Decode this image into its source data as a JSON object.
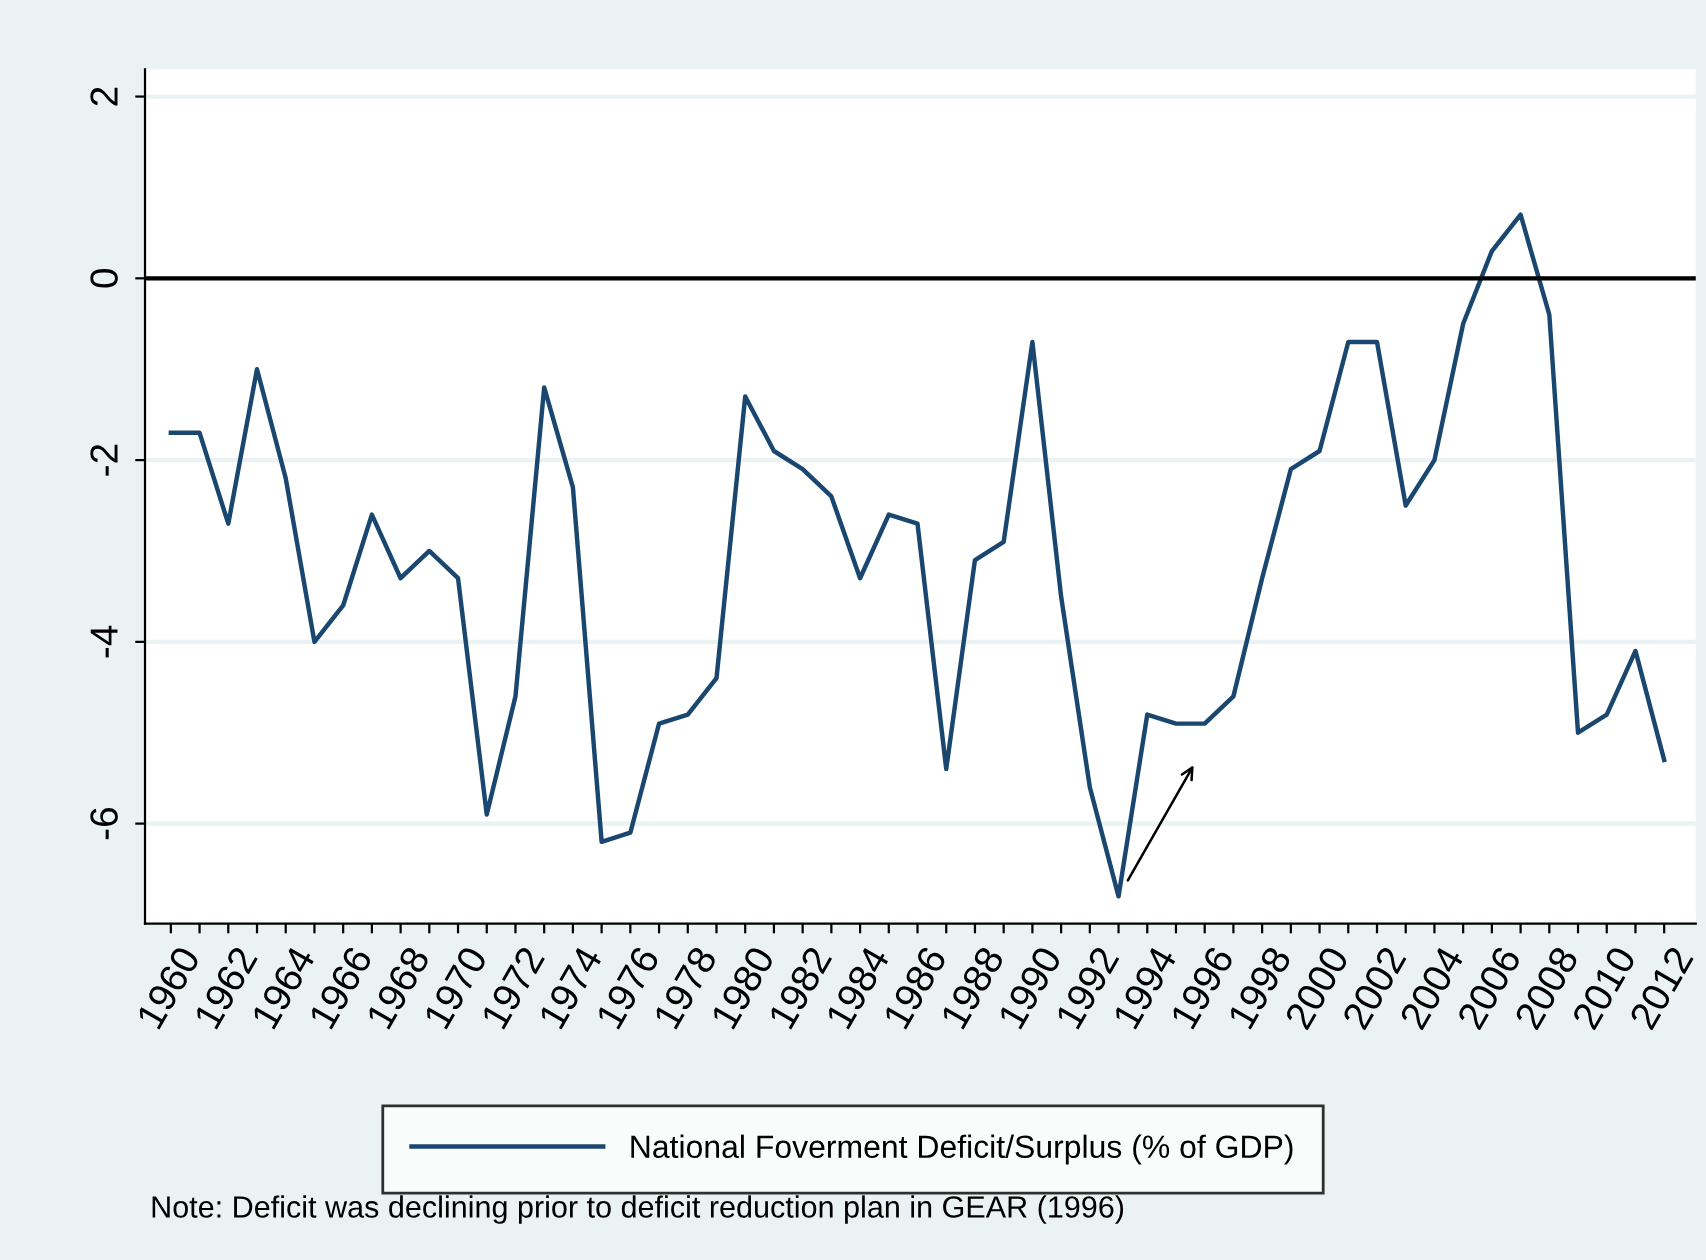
{
  "chart_data": {
    "type": "line",
    "x": [
      1960,
      1961,
      1962,
      1963,
      1964,
      1965,
      1966,
      1967,
      1968,
      1969,
      1970,
      1971,
      1972,
      1973,
      1974,
      1975,
      1976,
      1977,
      1978,
      1979,
      1980,
      1981,
      1982,
      1983,
      1984,
      1985,
      1986,
      1987,
      1988,
      1989,
      1990,
      1991,
      1992,
      1993,
      1994,
      1995,
      1996,
      1997,
      1998,
      1999,
      2000,
      2001,
      2002,
      2003,
      2004,
      2005,
      2006,
      2007,
      2008,
      2009,
      2010,
      2011,
      2012
    ],
    "series": [
      {
        "name": "National Foverment Deficit/Surplus (% of GDP)",
        "color": "#1a476f",
        "values": [
          -1.7,
          -1.7,
          -2.7,
          -1.0,
          -2.2,
          -4.0,
          -3.6,
          -2.6,
          -3.3,
          -3.0,
          -3.3,
          -5.9,
          -4.6,
          -1.2,
          -2.3,
          -6.2,
          -6.1,
          -4.9,
          -4.8,
          -4.4,
          -1.3,
          -1.9,
          -2.1,
          -2.4,
          -3.3,
          -2.6,
          -2.7,
          -5.4,
          -3.1,
          -2.9,
          -0.7,
          -3.5,
          -5.6,
          -6.8,
          -4.8,
          -4.9,
          -4.9,
          -4.6,
          -3.3,
          -2.1,
          -1.9,
          -0.7,
          -0.7,
          -2.5,
          -2.0,
          -0.5,
          0.3,
          0.7,
          -0.4,
          -5.0,
          -4.8,
          -4.1,
          -5.3
        ]
      }
    ],
    "xlim": [
      1959.1,
      2013.1
    ],
    "xticks": [
      1960,
      {
        "value": 1961,
        "label": null
      },
      1962,
      {
        "value": 1963,
        "label": null
      },
      1964,
      {
        "value": 1965,
        "label": null
      },
      1966,
      {
        "value": 1967,
        "label": null
      },
      1968,
      {
        "value": 1969,
        "label": null
      },
      1970,
      {
        "value": 1971,
        "label": null
      },
      1972,
      {
        "value": 1973,
        "label": null
      },
      1974,
      {
        "value": 1975,
        "label": null
      },
      1976,
      {
        "value": 1977,
        "label": null
      },
      1978,
      {
        "value": 1979,
        "label": null
      },
      1980,
      {
        "value": 1981,
        "label": null
      },
      1982,
      {
        "value": 1983,
        "label": null
      },
      1984,
      {
        "value": 1985,
        "label": null
      },
      1986,
      {
        "value": 1987,
        "label": null
      },
      1988,
      {
        "value": 1989,
        "label": null
      },
      1990,
      {
        "value": 1991,
        "label": null
      },
      1992,
      {
        "value": 1993,
        "label": null
      },
      1994,
      {
        "value": 1995,
        "label": null
      },
      1996,
      {
        "value": 1997,
        "label": null
      },
      1998,
      {
        "value": 1999,
        "label": null
      },
      2000,
      {
        "value": 2001,
        "label": null
      },
      2002,
      {
        "value": 2003,
        "label": null
      },
      2004,
      {
        "value": 2005,
        "label": null
      },
      2006,
      {
        "value": 2007,
        "label": null
      },
      2008,
      {
        "value": 2009,
        "label": null
      },
      2010,
      {
        "value": 2011,
        "label": null
      },
      2012
    ],
    "ylim": [
      -7.1,
      2.3
    ],
    "yticks": [
      -6,
      -4,
      -2,
      0,
      2
    ],
    "ref_lines": [
      {
        "axis": "y",
        "value": 0,
        "color": "#000000"
      }
    ],
    "annotations": [
      "Note: Deficit was declining prior to deficit reduction plan in GEAR (1996)"
    ],
    "grid": "y",
    "legend": "bottom",
    "marker": "none",
    "line_style": "solid"
  }
}
